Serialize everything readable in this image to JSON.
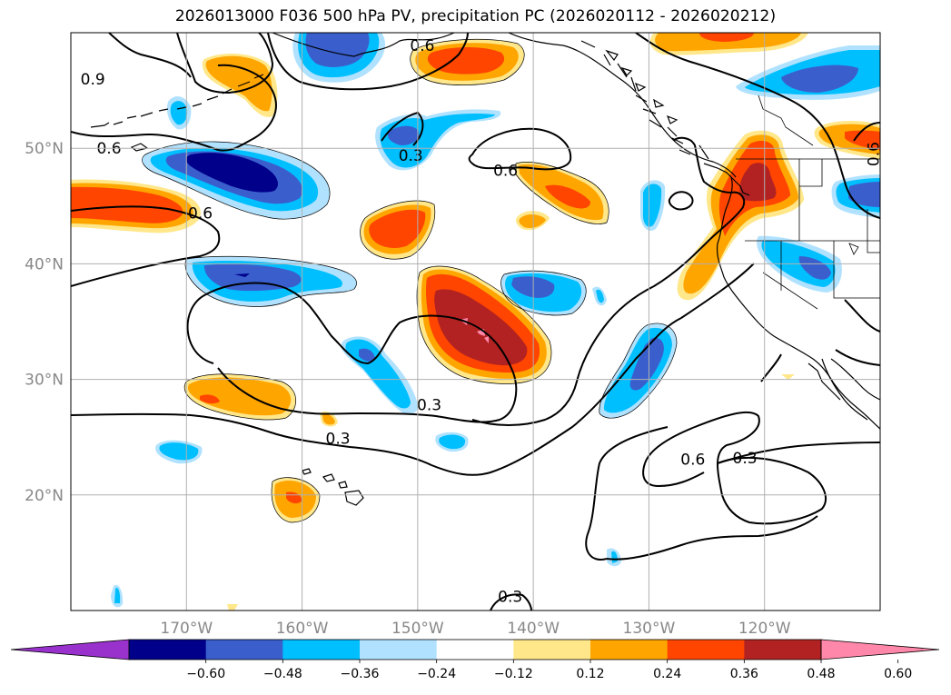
{
  "title": "2026013000 F036 500 hPa PV, precipitation PC (2026020112 - 2026020212)",
  "chart_data": {
    "type": "map",
    "title": "2026013000 F036 500 hPa PV, precipitation PC (2026020112 - 2026020212)",
    "variables": [
      "500 hPa PV (contours)",
      "precipitation PC (filled)"
    ],
    "lon_range": [
      -180,
      -110
    ],
    "lat_range": [
      10,
      60
    ],
    "lon_ticks": [
      -170,
      -160,
      -150,
      -140,
      -130,
      -120
    ],
    "lon_tick_labels": [
      "170°W",
      "160°W",
      "150°W",
      "140°W",
      "130°W",
      "120°W"
    ],
    "lat_ticks": [
      20,
      30,
      40,
      50
    ],
    "lat_tick_labels": [
      "20°N",
      "30°N",
      "40°N",
      "50°N"
    ],
    "grid": true,
    "pv_contour_levels": [
      0.3,
      0.6,
      0.9
    ],
    "contour_labels": [
      {
        "text": "0.9",
        "lon": -178.1,
        "lat": 56.0
      },
      {
        "text": "0.6",
        "lon": -176.7,
        "lat": 50.0
      },
      {
        "text": "0.6",
        "lon": -168.8,
        "lat": 44.4
      },
      {
        "text": "0.3",
        "lon": -150.6,
        "lat": 49.4
      },
      {
        "text": "0.6",
        "lon": -149.6,
        "lat": 58.9
      },
      {
        "text": "0.6",
        "lon": -142.4,
        "lat": 48.1
      },
      {
        "text": "0.3",
        "lon": -149.0,
        "lat": 27.8
      },
      {
        "text": "0.3",
        "lon": -156.9,
        "lat": 24.9
      },
      {
        "text": "0.6",
        "lon": -126.2,
        "lat": 23.1
      },
      {
        "text": "0.3",
        "lon": -121.7,
        "lat": 23.2
      },
      {
        "text": "0.3",
        "lon": -142.0,
        "lat": 11.2
      },
      {
        "text": "0.6",
        "lon": -110.6,
        "lat": 49.5
      }
    ],
    "colorbar": {
      "levels": [
        -0.6,
        -0.48,
        -0.36,
        -0.24,
        -0.12,
        0.12,
        0.24,
        0.36,
        0.48,
        0.6
      ],
      "tick_labels": [
        "−0.60",
        "−0.48",
        "−0.36",
        "−0.24",
        "−0.12",
        "0.12",
        "0.24",
        "0.36",
        "0.48",
        "0.60"
      ],
      "colors": [
        "#9932cc",
        "#00008b",
        "#3a5fcd",
        "#00bfff",
        "#b0e2ff",
        "#ffffff",
        "#ffe78a",
        "#ffa500",
        "#ff4500",
        "#b22222",
        "#ff88aa"
      ],
      "extend": "both"
    }
  }
}
